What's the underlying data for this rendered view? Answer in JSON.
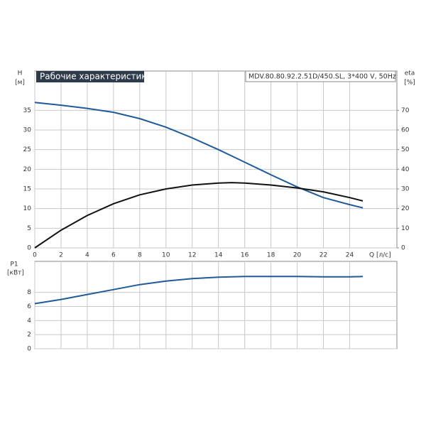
{
  "chart_data": [
    {
      "type": "line",
      "title": "Рабочие характеристики",
      "subtitle": "MDV.80.80.92.2.51D/450.SL, 3*400 V, 50Hz",
      "ylabel": "H",
      "yunit": "[м]",
      "y2label": "eta",
      "y2unit": "[%]",
      "xlabel": "Q [л/с]",
      "x": [
        0,
        2,
        4,
        6,
        8,
        10,
        12,
        14,
        15,
        16,
        18,
        20,
        22,
        24,
        25
      ],
      "series": [
        {
          "color": "#1f5a99",
          "values": [
            37,
            36.3,
            35.5,
            34.5,
            32.9,
            30.7,
            28,
            25,
            23.4,
            21.8,
            18.6,
            15.5,
            12.8,
            11,
            10.2
          ]
        },
        {
          "color": "#111111",
          "axis": "y2",
          "values": [
            0,
            9,
            16.5,
            22.5,
            27,
            30,
            32,
            33,
            33.2,
            33,
            32,
            30.5,
            28.5,
            25.6,
            23.9
          ]
        }
      ],
      "xlim": [
        0,
        27.6
      ],
      "xticks": [
        0,
        2,
        4,
        6,
        8,
        10,
        12,
        14,
        16,
        18,
        20,
        22,
        24
      ],
      "ylim": [
        0,
        45
      ],
      "yticks": [
        0,
        5,
        10,
        15,
        20,
        25,
        30,
        35
      ],
      "y2lim": [
        0,
        90
      ],
      "y2ticks": [
        0,
        10,
        20,
        30,
        40,
        50,
        60,
        70
      ],
      "grid": true
    },
    {
      "type": "line",
      "ylabel": "P1",
      "yunit": "[кВт]",
      "x": [
        0,
        2,
        4,
        6,
        8,
        10,
        12,
        14,
        16,
        18,
        20,
        22,
        24,
        25
      ],
      "series": [
        {
          "color": "#1f5a99",
          "values": [
            6.4,
            7,
            7.7,
            8.4,
            9.1,
            9.6,
            9.95,
            10.15,
            10.25,
            10.25,
            10.25,
            10.2,
            10.2,
            10.25
          ]
        }
      ],
      "xlim": [
        0,
        27.6
      ],
      "ylim": [
        0,
        12.4
      ],
      "yticks": [
        0,
        2,
        4,
        6,
        8
      ],
      "grid": true
    }
  ]
}
